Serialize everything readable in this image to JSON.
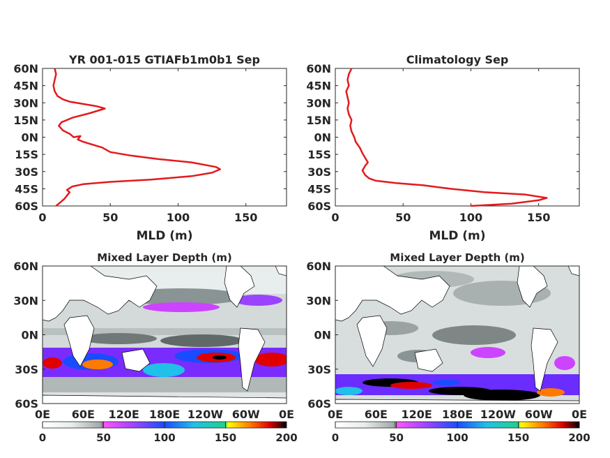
{
  "chart_data": [
    {
      "type": "line",
      "title": "YR 001-015 GTIAFb1m0b1 Sep",
      "xlabel": "MLD (m)",
      "ylabel": "",
      "xlim": [
        0,
        180
      ],
      "ylim": [
        -60,
        60
      ],
      "xticks": [
        0,
        50,
        100,
        150
      ],
      "yticks": [
        "60N",
        "45N",
        "30N",
        "15N",
        "0N",
        "15S",
        "30S",
        "45S",
        "60S"
      ],
      "series": [
        {
          "color": "#e31a1c",
          "points": [
            [
              10,
              -60
            ],
            [
              13,
              -57
            ],
            [
              16,
              -54
            ],
            [
              18,
              -51
            ],
            [
              20,
              -48
            ],
            [
              18,
              -46
            ],
            [
              22,
              -43
            ],
            [
              30,
              -41
            ],
            [
              50,
              -39
            ],
            [
              80,
              -37
            ],
            [
              110,
              -34
            ],
            [
              125,
              -31
            ],
            [
              131,
              -28
            ],
            [
              128,
              -26
            ],
            [
              110,
              -22
            ],
            [
              85,
              -19
            ],
            [
              65,
              -16
            ],
            [
              50,
              -13
            ],
            [
              44,
              -9
            ],
            [
              30,
              -4
            ],
            [
              26,
              -2
            ],
            [
              28,
              1
            ],
            [
              23,
              0
            ],
            [
              20,
              3
            ],
            [
              15,
              6
            ],
            [
              12,
              10
            ],
            [
              14,
              13
            ],
            [
              22,
              17
            ],
            [
              35,
              21
            ],
            [
              46,
              25
            ],
            [
              40,
              27
            ],
            [
              30,
              29
            ],
            [
              20,
              31
            ],
            [
              15,
              33
            ],
            [
              11,
              36
            ],
            [
              9,
              40
            ],
            [
              8,
              45
            ],
            [
              9,
              50
            ],
            [
              10,
              55
            ],
            [
              9,
              60
            ]
          ]
        }
      ]
    },
    {
      "type": "line",
      "title": "Climatology Sep",
      "xlabel": "MLD (m)",
      "ylabel": "",
      "xlim": [
        0,
        180
      ],
      "ylim": [
        -60,
        60
      ],
      "xticks": [
        0,
        50,
        100,
        150
      ],
      "yticks": [
        "60N",
        "45N",
        "30N",
        "15N",
        "0N",
        "15S",
        "30S",
        "45S",
        "60S"
      ],
      "series": [
        {
          "color": "#e31a1c",
          "points": [
            [
              100,
              -60
            ],
            [
              130,
              -58
            ],
            [
              150,
              -55
            ],
            [
              156,
              -53
            ],
            [
              140,
              -50
            ],
            [
              110,
              -48
            ],
            [
              85,
              -45
            ],
            [
              65,
              -42
            ],
            [
              45,
              -40
            ],
            [
              30,
              -38
            ],
            [
              25,
              -36
            ],
            [
              22,
              -33
            ],
            [
              20,
              -29
            ],
            [
              22,
              -25
            ],
            [
              24,
              -22
            ],
            [
              22,
              -18
            ],
            [
              20,
              -14
            ],
            [
              18,
              -9
            ],
            [
              15,
              -4
            ],
            [
              14,
              0
            ],
            [
              12,
              5
            ],
            [
              11,
              10
            ],
            [
              12,
              15
            ],
            [
              10,
              20
            ],
            [
              9,
              25
            ],
            [
              10,
              30
            ],
            [
              9,
              35
            ],
            [
              8,
              40
            ],
            [
              10,
              45
            ],
            [
              9,
              50
            ],
            [
              10,
              55
            ],
            [
              12,
              60
            ]
          ]
        }
      ]
    },
    {
      "type": "heatmap",
      "title": "Mixed Layer Depth (m)",
      "xticks": [
        "0E",
        "60E",
        "120E",
        "180E",
        "120W",
        "60W",
        "0E"
      ],
      "yticks": [
        "60N",
        "30N",
        "0N",
        "30S",
        "60S"
      ],
      "colorbar": {
        "ticks": [
          0,
          50,
          100,
          150,
          200
        ],
        "range": [
          0,
          200
        ]
      }
    },
    {
      "type": "heatmap",
      "title": "Mixed Layer Depth (m)",
      "xticks": [
        "0E",
        "60E",
        "120E",
        "180E",
        "120W",
        "60W",
        "0E"
      ],
      "yticks": [
        "60N",
        "30N",
        "0N",
        "30S",
        "60S"
      ],
      "colorbar": {
        "ticks": [
          0,
          50,
          100,
          150,
          200
        ],
        "range": [
          0,
          200
        ]
      }
    }
  ]
}
